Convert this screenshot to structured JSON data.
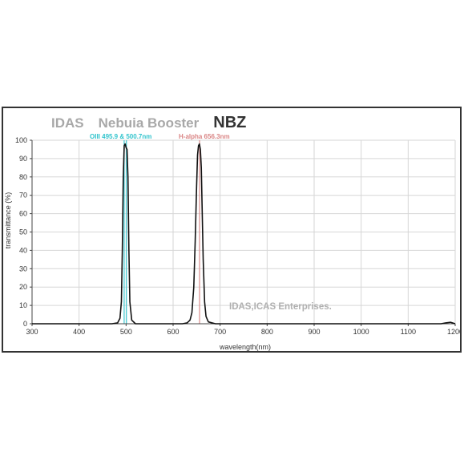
{
  "chart_data": {
    "type": "line",
    "title_parts": [
      "IDAS",
      "Nebuia Booster",
      "NBZ"
    ],
    "xlabel": "wavelength(nm)",
    "ylabel": "transmittance (%)",
    "xlim": [
      300,
      1200
    ],
    "ylim": [
      0,
      100
    ],
    "xticks": [
      300,
      400,
      500,
      600,
      700,
      800,
      900,
      1000,
      1100,
      1200
    ],
    "yticks": [
      0,
      10,
      20,
      30,
      40,
      50,
      60,
      70,
      80,
      90,
      100
    ],
    "grid": true,
    "annotations": {
      "oiii_label": "OIII 495.9 & 500.7nm",
      "halpha_label": "H-alpha 656.3nm",
      "watermark": "IDAS,ICAS Enterprises."
    },
    "reference_lines": [
      {
        "x": 495.9,
        "color": "#40c8d0"
      },
      {
        "x": 500.7,
        "color": "#40c8d0"
      },
      {
        "x": 656.3,
        "color": "#d88a8a"
      }
    ],
    "series": [
      {
        "color": "#111111",
        "x": [
          300,
          380,
          470,
          482,
          487,
          490,
          492,
          494,
          496,
          498,
          500,
          502,
          504,
          506,
          508,
          512,
          520,
          560,
          600,
          620,
          630,
          636,
          640,
          644,
          647,
          650,
          652,
          654,
          656,
          658,
          660,
          662,
          664,
          667,
          670,
          675,
          690,
          720,
          800,
          850,
          900,
          1000,
          1100,
          1170,
          1180,
          1190,
          1200
        ],
        "y": [
          0,
          0,
          0,
          0.5,
          3,
          12,
          40,
          80,
          97,
          98,
          96,
          95,
          80,
          40,
          12,
          2,
          0,
          0,
          0,
          0,
          0.5,
          2,
          6,
          20,
          45,
          75,
          92,
          97,
          98,
          95,
          85,
          60,
          35,
          12,
          4,
          1,
          0,
          0,
          0,
          0,
          0,
          0,
          0,
          0,
          0.5,
          0.8,
          0
        ]
      }
    ]
  },
  "colors": {
    "title_gray": "#a8a8a8",
    "title_dark": "#333333",
    "oiii": "#2fc3cc",
    "halpha": "#d98383",
    "watermark": "#b0b0b0",
    "grid": "#d6d6d6",
    "axis": "#444444"
  }
}
